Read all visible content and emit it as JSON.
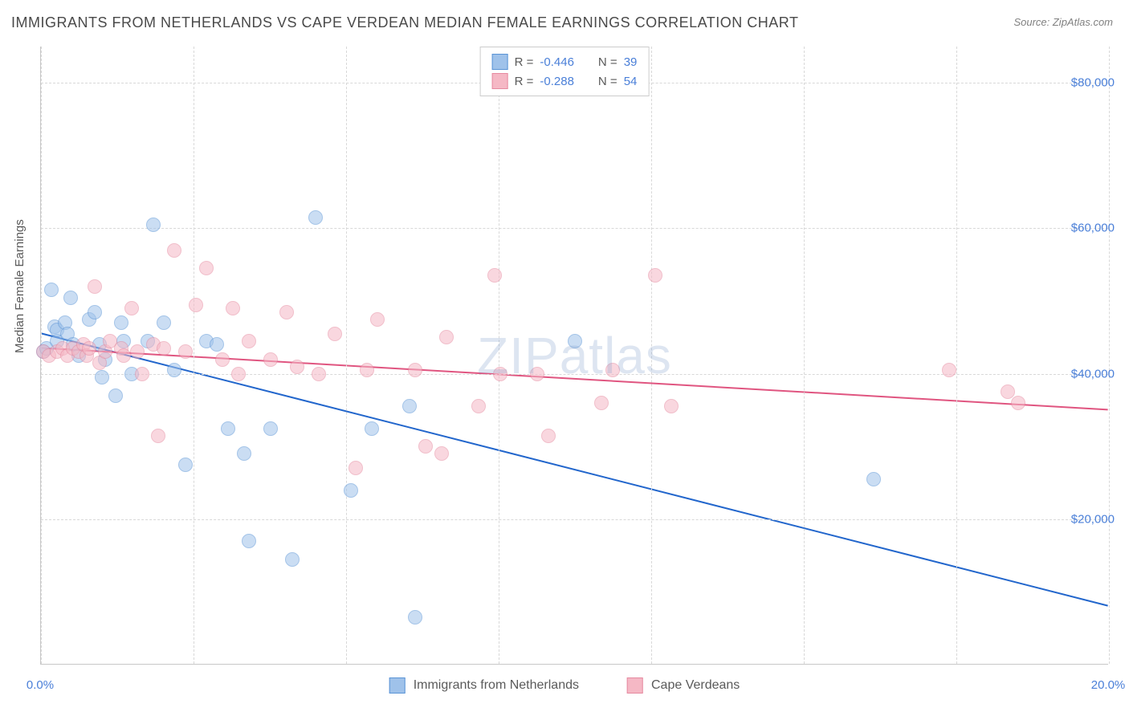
{
  "title": "IMMIGRANTS FROM NETHERLANDS VS CAPE VERDEAN MEDIAN FEMALE EARNINGS CORRELATION CHART",
  "source": "Source: ZipAtlas.com",
  "watermark": "ZIPatlas",
  "ylabel": "Median Female Earnings",
  "chart": {
    "type": "scatter",
    "xlim": [
      0,
      20
    ],
    "ylim": [
      0,
      85000
    ],
    "ytick_values": [
      20000,
      40000,
      60000,
      80000
    ],
    "ytick_labels": [
      "$20,000",
      "$40,000",
      "$60,000",
      "$80,000"
    ],
    "xtick_values": [
      0,
      20
    ],
    "xtick_labels": [
      "0.0%",
      "20.0%"
    ],
    "xgrid_values": [
      0,
      2.857,
      5.714,
      8.571,
      11.429,
      14.286,
      17.143,
      20
    ],
    "background_color": "#ffffff",
    "grid_color": "#d8d8d8",
    "axis_color": "#c8c8c8",
    "marker_radius": 9,
    "marker_opacity": 0.55,
    "marker_border_width": 1.5,
    "trend_width": 2
  },
  "series": [
    {
      "name": "Immigrants from Netherlands",
      "fill_color": "#9fc2ea",
      "border_color": "#5a94d6",
      "trend_color": "#2266cc",
      "R": "-0.446",
      "N": "39",
      "trend": {
        "x1": 0,
        "y1": 45500,
        "x2": 20,
        "y2": 8000
      },
      "points": [
        [
          0.05,
          43000
        ],
        [
          0.1,
          43500
        ],
        [
          0.2,
          51500
        ],
        [
          0.25,
          46500
        ],
        [
          0.3,
          44500
        ],
        [
          0.3,
          46000
        ],
        [
          0.45,
          47000
        ],
        [
          0.5,
          45500
        ],
        [
          0.55,
          50500
        ],
        [
          0.6,
          44000
        ],
        [
          0.7,
          42500
        ],
        [
          0.9,
          47500
        ],
        [
          1.0,
          48500
        ],
        [
          1.1,
          44000
        ],
        [
          1.15,
          39500
        ],
        [
          1.2,
          42000
        ],
        [
          1.4,
          37000
        ],
        [
          1.5,
          47000
        ],
        [
          1.55,
          44500
        ],
        [
          1.7,
          40000
        ],
        [
          2.0,
          44500
        ],
        [
          2.1,
          60500
        ],
        [
          2.3,
          47000
        ],
        [
          2.5,
          40500
        ],
        [
          2.7,
          27500
        ],
        [
          3.1,
          44500
        ],
        [
          3.3,
          44000
        ],
        [
          3.5,
          32500
        ],
        [
          3.8,
          29000
        ],
        [
          3.9,
          17000
        ],
        [
          4.3,
          32500
        ],
        [
          4.7,
          14500
        ],
        [
          5.15,
          61500
        ],
        [
          5.8,
          24000
        ],
        [
          6.2,
          32500
        ],
        [
          6.9,
          35500
        ],
        [
          7.0,
          6500
        ],
        [
          10.0,
          44500
        ],
        [
          15.6,
          25500
        ]
      ]
    },
    {
      "name": "Cape Verdeans",
      "fill_color": "#f5b8c5",
      "border_color": "#e68aa0",
      "trend_color": "#e05580",
      "R": "-0.288",
      "N": "54",
      "trend": {
        "x1": 0,
        "y1": 43500,
        "x2": 20,
        "y2": 35000
      },
      "points": [
        [
          0.05,
          43000
        ],
        [
          0.15,
          42500
        ],
        [
          0.3,
          43000
        ],
        [
          0.4,
          43500
        ],
        [
          0.5,
          42500
        ],
        [
          0.6,
          43500
        ],
        [
          0.7,
          43000
        ],
        [
          0.8,
          44000
        ],
        [
          0.85,
          42500
        ],
        [
          0.9,
          43500
        ],
        [
          1.0,
          52000
        ],
        [
          1.1,
          41500
        ],
        [
          1.2,
          43000
        ],
        [
          1.3,
          44500
        ],
        [
          1.5,
          43500
        ],
        [
          1.55,
          42500
        ],
        [
          1.7,
          49000
        ],
        [
          1.8,
          43000
        ],
        [
          1.9,
          40000
        ],
        [
          2.1,
          44000
        ],
        [
          2.2,
          31500
        ],
        [
          2.3,
          43500
        ],
        [
          2.5,
          57000
        ],
        [
          2.7,
          43000
        ],
        [
          2.9,
          49500
        ],
        [
          3.1,
          54500
        ],
        [
          3.4,
          42000
        ],
        [
          3.6,
          49000
        ],
        [
          3.7,
          40000
        ],
        [
          3.9,
          44500
        ],
        [
          4.3,
          42000
        ],
        [
          4.6,
          48500
        ],
        [
          4.8,
          41000
        ],
        [
          5.2,
          40000
        ],
        [
          5.5,
          45500
        ],
        [
          5.9,
          27000
        ],
        [
          6.1,
          40500
        ],
        [
          6.3,
          47500
        ],
        [
          7.0,
          40500
        ],
        [
          7.2,
          30000
        ],
        [
          7.5,
          29000
        ],
        [
          7.6,
          45000
        ],
        [
          8.2,
          35500
        ],
        [
          8.5,
          53500
        ],
        [
          8.6,
          40000
        ],
        [
          9.3,
          40000
        ],
        [
          9.5,
          31500
        ],
        [
          10.5,
          36000
        ],
        [
          10.7,
          40500
        ],
        [
          11.5,
          53500
        ],
        [
          11.8,
          35500
        ],
        [
          17.0,
          40500
        ],
        [
          18.1,
          37500
        ],
        [
          18.3,
          36000
        ]
      ]
    }
  ],
  "legend_top": {
    "R_label": "R =",
    "N_label": "N ="
  }
}
